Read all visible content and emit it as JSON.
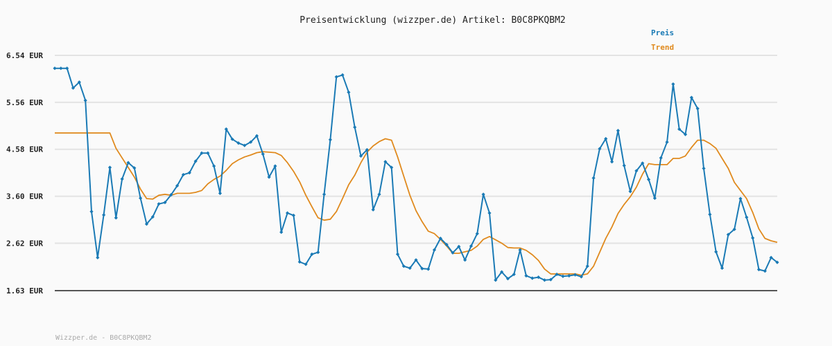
{
  "chart_data": {
    "type": "line",
    "title": "Preisentwicklung (wizzper.de) Artikel: B0C8PKQBM2",
    "footer": "Wizzper.de - B0C8PKQBM2",
    "xlabel": "",
    "ylabel": "",
    "ylim": [
      1.63,
      6.54
    ],
    "yticks": [
      "6.54 EUR",
      "5.56 EUR",
      "4.58 EUR",
      "3.60 EUR",
      "2.62 EUR",
      "1.63 EUR"
    ],
    "ytick_values": [
      6.54,
      5.56,
      4.58,
      3.6,
      2.62,
      1.63
    ],
    "grid": true,
    "legend_position": "top-right",
    "series": [
      {
        "name": "Preis",
        "color": "#1a7ab5",
        "marker": "diamond",
        "values": [
          6.27,
          6.27,
          6.27,
          5.86,
          5.98,
          5.6,
          3.28,
          2.32,
          3.21,
          4.2,
          3.15,
          3.96,
          4.3,
          4.19,
          3.56,
          3.02,
          3.17,
          3.44,
          3.47,
          3.63,
          3.82,
          4.05,
          4.09,
          4.33,
          4.5,
          4.5,
          4.23,
          3.66,
          5.0,
          4.79,
          4.71,
          4.66,
          4.73,
          4.86,
          4.48,
          4.0,
          4.23,
          2.85,
          3.25,
          3.2,
          2.23,
          2.18,
          2.39,
          2.43,
          3.64,
          4.78,
          6.09,
          6.13,
          5.77,
          5.04,
          4.44,
          4.57,
          3.32,
          3.64,
          4.32,
          4.2,
          2.39,
          2.14,
          2.1,
          2.27,
          2.09,
          2.08,
          2.48,
          2.72,
          2.59,
          2.42,
          2.55,
          2.27,
          2.56,
          2.82,
          3.64,
          3.25,
          1.85,
          2.02,
          1.88,
          1.97,
          2.48,
          1.94,
          1.89,
          1.91,
          1.85,
          1.86,
          1.97,
          1.93,
          1.94,
          1.96,
          1.92,
          2.14,
          3.98,
          4.59,
          4.8,
          4.32,
          4.97,
          4.24,
          3.7,
          4.13,
          4.29,
          3.95,
          3.56,
          4.4,
          4.73,
          5.94,
          5.0,
          4.89,
          5.66,
          5.43,
          4.18,
          3.22,
          2.44,
          2.1,
          2.8,
          2.91,
          3.55,
          3.16,
          2.73,
          2.07,
          2.04,
          2.32,
          2.22
        ]
      },
      {
        "name": "Trend",
        "color": "#e08a1e",
        "values": [
          4.92,
          4.92,
          4.92,
          4.92,
          4.92,
          4.92,
          4.92,
          4.92,
          4.92,
          4.92,
          4.6,
          4.4,
          4.2,
          4.0,
          3.75,
          3.55,
          3.54,
          3.62,
          3.64,
          3.62,
          3.66,
          3.66,
          3.66,
          3.68,
          3.72,
          3.86,
          3.95,
          4.02,
          4.14,
          4.28,
          4.36,
          4.42,
          4.46,
          4.51,
          4.53,
          4.52,
          4.51,
          4.45,
          4.3,
          4.12,
          3.9,
          3.62,
          3.38,
          3.15,
          3.1,
          3.12,
          3.28,
          3.55,
          3.84,
          4.04,
          4.3,
          4.52,
          4.65,
          4.74,
          4.8,
          4.77,
          4.42,
          4.02,
          3.62,
          3.3,
          3.07,
          2.87,
          2.82,
          2.7,
          2.56,
          2.41,
          2.41,
          2.44,
          2.47,
          2.56,
          2.7,
          2.76,
          2.69,
          2.62,
          2.53,
          2.52,
          2.52,
          2.47,
          2.38,
          2.26,
          2.08,
          1.98,
          1.98,
          1.98,
          1.98,
          1.98,
          1.95,
          1.98,
          2.14,
          2.43,
          2.72,
          2.96,
          3.24,
          3.43,
          3.59,
          3.79,
          4.06,
          4.28,
          4.26,
          4.26,
          4.26,
          4.39,
          4.39,
          4.44,
          4.62,
          4.77,
          4.77,
          4.7,
          4.6,
          4.39,
          4.18,
          3.89,
          3.72,
          3.55,
          3.26,
          2.92,
          2.72,
          2.67,
          2.64
        ]
      }
    ]
  }
}
